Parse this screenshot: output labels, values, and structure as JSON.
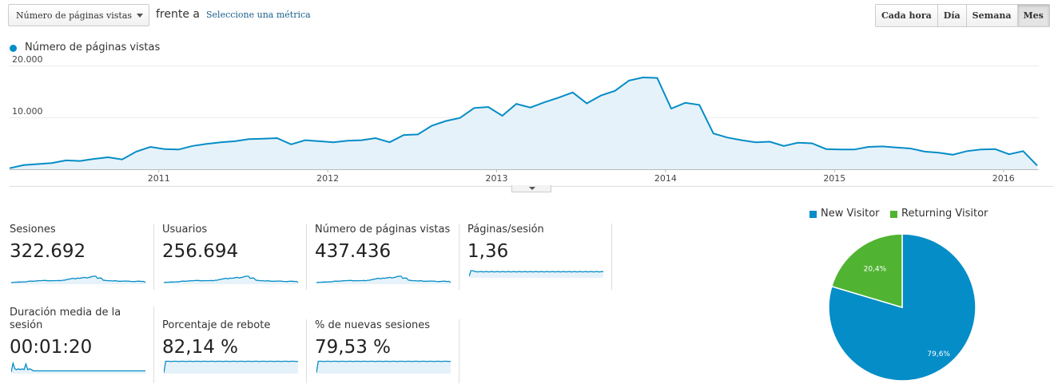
{
  "toolbar": {
    "metric_select": "Número de páginas vistas",
    "versus": "frente a",
    "select_metric_link": "Seleccione una métrica",
    "granularity": [
      "Cada hora",
      "Día",
      "Semana",
      "Mes"
    ],
    "active_granularity": "Mes"
  },
  "colors": {
    "accent": "#058dc7",
    "fill": "#e6f2f9",
    "returning": "#50b432"
  },
  "chart_data": [
    {
      "type": "area",
      "series": [
        {
          "name": "Número de páginas vistas",
          "values": [
            200,
            800,
            1000,
            1200,
            1700,
            1600,
            2000,
            2300,
            1900,
            3400,
            4300,
            3900,
            3800,
            4500,
            4900,
            5200,
            5400,
            5800,
            5900,
            6000,
            4800,
            5600,
            5400,
            5200,
            5500,
            5600,
            6000,
            5200,
            6600,
            6700,
            8400,
            9300,
            9900,
            11800,
            12000,
            10300,
            12600,
            11900,
            12900,
            13800,
            14800,
            12700,
            14200,
            15100,
            17100,
            17700,
            17600,
            11700,
            12800,
            12400,
            6900,
            6100,
            5600,
            5200,
            5300,
            4500,
            5100,
            5000,
            3900,
            3800,
            3800,
            4300,
            4400,
            4200,
            4000,
            3400,
            3200,
            2800,
            3500,
            3800,
            3900,
            2900,
            3500,
            700
          ]
        }
      ],
      "x_labels": [
        "2011",
        "2012",
        "2013",
        "2014",
        "2015",
        "2016"
      ],
      "y_labels": [
        "20.000",
        "10.000"
      ],
      "ylim": [
        0,
        20000
      ],
      "grid": true
    },
    {
      "type": "pie",
      "legend": [
        "New Visitor",
        "Returning Visitor"
      ],
      "legend_position": "top",
      "values": [
        79.6,
        20.4
      ],
      "labels": [
        "79,6%",
        "20,4%"
      ]
    }
  ],
  "legend": {
    "label": "Número de páginas vistas"
  },
  "scorecards": [
    {
      "name": "Sesiones",
      "value": "322.692"
    },
    {
      "name": "Usuarios",
      "value": "256.694"
    },
    {
      "name": "Número de páginas vistas",
      "value": "437.436"
    },
    {
      "name": "Páginas/sesión",
      "value": "1,36"
    },
    {
      "name": "Duración media de la sesión",
      "value": "00:01:20"
    },
    {
      "name": "Porcentaje de rebote",
      "value": "82,14 %"
    },
    {
      "name": "% de nuevas sesiones",
      "value": "79,53 %"
    }
  ]
}
